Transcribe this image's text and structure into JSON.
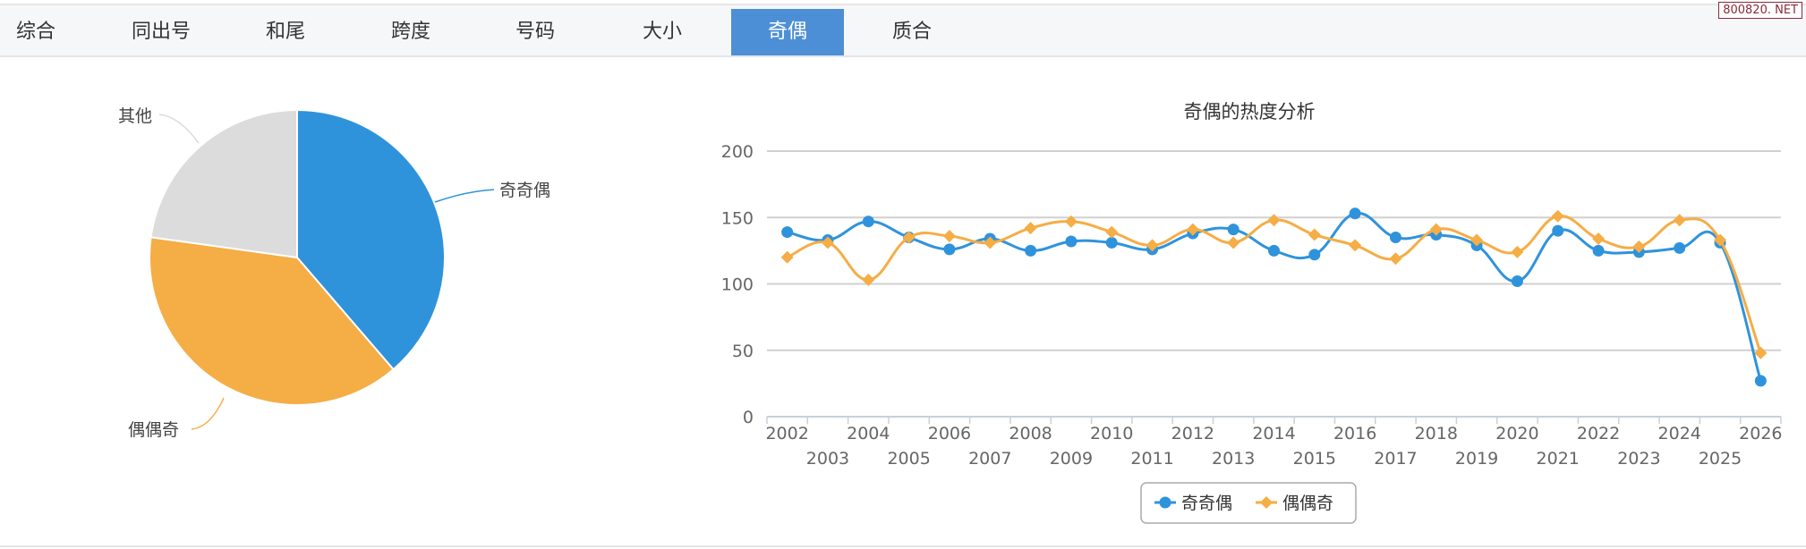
{
  "tabs": [
    {
      "label": "综合",
      "active": false
    },
    {
      "label": "同出号",
      "active": false
    },
    {
      "label": "和尾",
      "active": false
    },
    {
      "label": "跨度",
      "active": false
    },
    {
      "label": "号码",
      "active": false
    },
    {
      "label": "大小",
      "active": false
    },
    {
      "label": "奇偶",
      "active": true
    },
    {
      "label": "质合",
      "active": false
    }
  ],
  "brand": "800820. NET",
  "colors": {
    "accent": "#4d8fd6",
    "series1": "#2f93dc",
    "series2": "#f5ad45",
    "other": "#dcdcdc"
  },
  "chart_data": [
    {
      "type": "pie",
      "slices": [
        {
          "label": "奇奇偶",
          "value": 38.7,
          "color": "#2f93dc"
        },
        {
          "label": "偶偶奇",
          "value": 38.5,
          "color": "#f5ad45"
        },
        {
          "label": "其他",
          "value": 22.8,
          "color": "#dcdcdc"
        }
      ]
    },
    {
      "type": "line",
      "title": "奇偶的热度分析",
      "categories": [
        "2002",
        "2003",
        "2004",
        "2005",
        "2006",
        "2007",
        "2008",
        "2009",
        "2010",
        "2011",
        "2012",
        "2013",
        "2014",
        "2015",
        "2016",
        "2017",
        "2018",
        "2019",
        "2020",
        "2021",
        "2022",
        "2023",
        "2024",
        "2025",
        "2026"
      ],
      "ylim": [
        0,
        200
      ],
      "yticks": [
        "0",
        "50",
        "100",
        "150",
        "200"
      ],
      "grid": true,
      "legend": "bottom-center",
      "series": [
        {
          "name": "奇奇偶",
          "color": "#2f93dc",
          "marker": "circle",
          "values": [
            139,
            133,
            147,
            135,
            126,
            134,
            125,
            132,
            131,
            126,
            138,
            141,
            125,
            122,
            153,
            135,
            137,
            129,
            102,
            140,
            125,
            124,
            127,
            131,
            27
          ]
        },
        {
          "name": "偶偶奇",
          "color": "#f5ad45",
          "marker": "diamond",
          "values": [
            120,
            131,
            103,
            135,
            136,
            131,
            142,
            147,
            139,
            129,
            141,
            131,
            148,
            137,
            129,
            119,
            141,
            133,
            124,
            151,
            134,
            128,
            148,
            133,
            48
          ]
        }
      ]
    }
  ]
}
